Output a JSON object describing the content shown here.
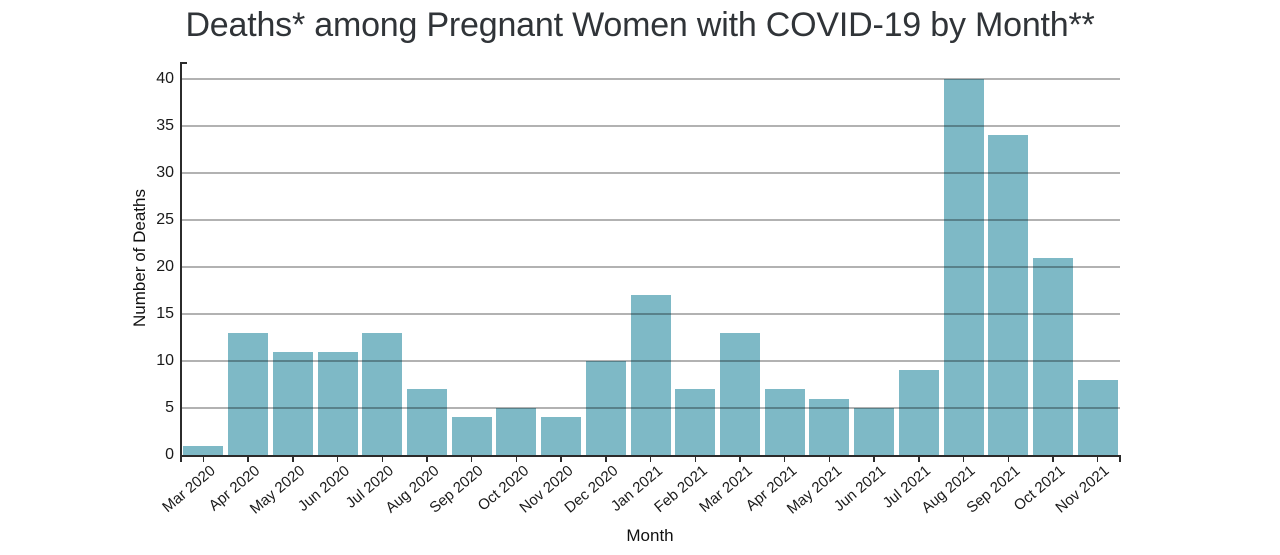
{
  "page": {
    "background": "#ffffff"
  },
  "chart_data": {
    "type": "bar",
    "title": "Deaths* among Pregnant Women with COVID-19 by Month**",
    "xlabel": "Month",
    "ylabel": "Number of Deaths",
    "categories": [
      "Mar 2020",
      "Apr 2020",
      "May 2020",
      "Jun 2020",
      "Jul 2020",
      "Aug 2020",
      "Sep 2020",
      "Oct 2020",
      "Nov 2020",
      "Dec 2020",
      "Jan 2021",
      "Feb 2021",
      "Mar 2021",
      "Apr 2021",
      "May 2021",
      "Jun 2021",
      "Jul 2021",
      "Aug 2021",
      "Sep 2021",
      "Oct 2021",
      "Nov 2021"
    ],
    "values": [
      1,
      13,
      11,
      11,
      13,
      7,
      4,
      5,
      4,
      10,
      17,
      7,
      13,
      7,
      6,
      5,
      9,
      40,
      34,
      21,
      8
    ],
    "ylim": [
      0,
      40
    ],
    "ytick_interval": 5,
    "yticks": [
      0,
      5,
      10,
      15,
      20,
      25,
      30,
      35,
      40
    ],
    "grid": "horizontal",
    "legend": "none",
    "colors": {
      "bar": "#7eb9c6",
      "gridline": "rgba(0,0,0,0.30)",
      "axis": "#2b2b2b",
      "tick_label": "#1a1a1a",
      "title": "#303438"
    }
  }
}
